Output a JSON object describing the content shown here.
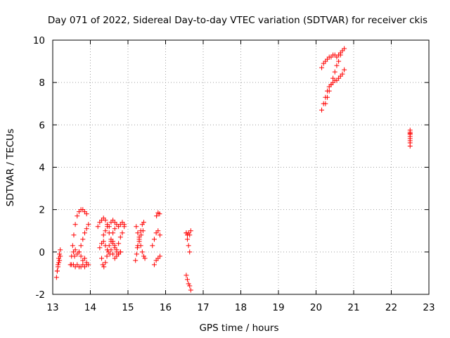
{
  "chart_data": {
    "type": "scatter",
    "title": "Day 071 of 2022, Sidereal Day-to-day VTEC variation (SDTVAR) for receiver ckis",
    "xlabel": "GPS time / hours",
    "ylabel": "SDTVAR / TECUs",
    "xlim": [
      13,
      23
    ],
    "ylim": [
      -2,
      10
    ],
    "xticks": [
      13,
      14,
      15,
      16,
      17,
      18,
      19,
      20,
      21,
      22,
      23
    ],
    "yticks": [
      -2,
      0,
      2,
      4,
      6,
      8,
      10
    ],
    "grid": true,
    "marker": "+",
    "color": "#ff0000",
    "series": [
      {
        "name": "SDTVAR",
        "traces": [
          {
            "x": [
              13.1,
              13.12,
              13.14,
              13.16,
              13.18,
              13.2
            ],
            "y": [
              -1.2,
              -0.9,
              -0.6,
              -0.3,
              -0.1,
              0.1
            ]
          },
          {
            "x": [
              13.12,
              13.14,
              13.16,
              13.18,
              13.2
            ],
            "y": [
              -0.9,
              -0.7,
              -0.5,
              -0.4,
              -0.2
            ]
          },
          {
            "x": [
              13.47,
              13.5,
              13.53,
              13.56,
              13.6,
              13.65,
              13.7,
              13.75,
              13.8,
              13.85,
              13.9
            ],
            "y": [
              -0.6,
              -0.2,
              0.3,
              0.8,
              1.3,
              1.7,
              1.9,
              2.0,
              2.0,
              1.9,
              1.8
            ]
          },
          {
            "x": [
              13.5,
              13.55,
              13.6,
              13.65,
              13.7,
              13.75,
              13.8,
              13.85,
              13.9
            ],
            "y": [
              -0.6,
              -0.6,
              -0.7,
              -0.6,
              -0.7,
              -0.7,
              -0.6,
              -0.7,
              -0.6
            ]
          },
          {
            "x": [
              13.55,
              13.58,
              13.6,
              13.65,
              13.7
            ],
            "y": [
              0.0,
              -0.2,
              0.1,
              -0.1,
              0.0
            ]
          },
          {
            "x": [
              13.7,
              13.75,
              13.8,
              13.85,
              13.9,
              13.95
            ],
            "y": [
              0.0,
              0.3,
              0.6,
              0.9,
              1.1,
              1.3
            ]
          },
          {
            "x": [
              13.75,
              13.8,
              13.85,
              13.9,
              13.95
            ],
            "y": [
              -0.2,
              -0.4,
              -0.3,
              -0.5,
              -0.6
            ]
          },
          {
            "x": [
              14.2,
              14.25,
              14.3,
              14.35,
              14.4,
              14.45,
              14.5,
              14.55,
              14.6,
              14.65,
              14.7,
              14.75,
              14.8,
              14.85,
              14.9
            ],
            "y": [
              1.2,
              1.4,
              1.5,
              1.6,
              1.5,
              1.3,
              1.2,
              1.4,
              1.5,
              1.4,
              1.3,
              1.2,
              1.3,
              1.4,
              1.3
            ]
          },
          {
            "x": [
              14.25,
              14.3,
              14.35,
              14.4,
              14.45,
              14.5,
              14.55,
              14.6,
              14.65,
              14.7,
              14.75,
              14.8
            ],
            "y": [
              0.2,
              0.4,
              0.5,
              0.3,
              0.1,
              0.3,
              0.5,
              0.4,
              0.2,
              0.0,
              -0.1,
              0.0
            ]
          },
          {
            "x": [
              14.3,
              14.33,
              14.36,
              14.4,
              14.44,
              14.48,
              14.52
            ],
            "y": [
              -0.3,
              -0.6,
              -0.7,
              -0.5,
              -0.2,
              0.0,
              -0.1
            ]
          },
          {
            "x": [
              14.35,
              14.4,
              14.45,
              14.5,
              14.55,
              14.6,
              14.65
            ],
            "y": [
              0.8,
              1.0,
              1.2,
              0.9,
              0.6,
              0.9,
              1.1
            ]
          },
          {
            "x": [
              14.6,
              14.65,
              14.7,
              14.75,
              14.8,
              14.85,
              14.9
            ],
            "y": [
              0.5,
              0.3,
              0.1,
              0.4,
              0.7,
              0.9,
              1.2
            ]
          },
          {
            "x": [
              14.55,
              14.6,
              14.65,
              14.7,
              14.75,
              14.8
            ],
            "y": [
              0.1,
              -0.1,
              -0.3,
              -0.2,
              -0.1,
              0.0
            ]
          },
          {
            "x": [
              15.2,
              15.23,
              15.26,
              15.3,
              15.34,
              15.38,
              15.42
            ],
            "y": [
              -0.4,
              -0.1,
              0.3,
              0.7,
              1.0,
              1.3,
              1.4
            ]
          },
          {
            "x": [
              15.22,
              15.26,
              15.3,
              15.34,
              15.38,
              15.42,
              15.45
            ],
            "y": [
              1.2,
              0.9,
              0.6,
              0.3,
              0.0,
              -0.2,
              -0.3
            ]
          },
          {
            "x": [
              15.25,
              15.3,
              15.35,
              15.4
            ],
            "y": [
              0.2,
              0.5,
              0.8,
              1.0
            ]
          },
          {
            "x": [
              15.65,
              15.7,
              15.75,
              15.8,
              15.85
            ],
            "y": [
              0.3,
              0.6,
              0.9,
              1.0,
              0.8
            ]
          },
          {
            "x": [
              15.7,
              15.75,
              15.8,
              15.85
            ],
            "y": [
              -0.6,
              -0.4,
              -0.3,
              -0.2
            ]
          },
          {
            "x": [
              15.76,
              15.8,
              15.84
            ],
            "y": [
              1.7,
              1.85,
              1.8
            ]
          },
          {
            "x": [
              16.55,
              16.58,
              16.61,
              16.64
            ],
            "y": [
              0.9,
              0.6,
              0.3,
              0.0
            ]
          },
          {
            "x": [
              16.55,
              16.58,
              16.61,
              16.64,
              16.67
            ],
            "y": [
              0.9,
              0.8,
              0.9,
              0.8,
              1.0
            ]
          },
          {
            "x": [
              16.55,
              16.58,
              16.61,
              16.64,
              16.67
            ],
            "y": [
              -1.1,
              -1.3,
              -1.5,
              -1.6,
              -1.8
            ]
          },
          {
            "x": [
              20.15,
              20.2,
              20.25,
              20.3,
              20.35,
              20.4,
              20.45,
              20.5,
              20.55,
              20.6,
              20.65,
              20.7,
              20.75
            ],
            "y": [
              8.7,
              8.9,
              9.0,
              9.1,
              9.2,
              9.2,
              9.3,
              9.3,
              9.2,
              9.3,
              9.4,
              9.5,
              9.6
            ]
          },
          {
            "x": [
              20.15,
              20.2,
              20.25,
              20.3,
              20.35,
              20.4,
              20.45,
              20.5,
              20.55,
              20.6,
              20.65,
              20.7,
              20.75
            ],
            "y": [
              6.7,
              7.0,
              7.3,
              7.6,
              7.8,
              7.9,
              8.0,
              8.1,
              8.1,
              8.2,
              8.3,
              8.4,
              8.6
            ]
          },
          {
            "x": [
              20.25,
              20.3,
              20.35,
              20.4,
              20.45,
              20.5,
              20.55,
              20.6,
              20.65
            ],
            "y": [
              7.0,
              7.3,
              7.6,
              7.9,
              8.2,
              8.5,
              8.8,
              9.0,
              9.3
            ]
          },
          {
            "x": [
              22.5,
              22.5,
              22.5,
              22.5,
              22.5,
              22.5,
              22.5,
              22.5,
              22.5
            ],
            "y": [
              5.0,
              5.15,
              5.25,
              5.35,
              5.45,
              5.55,
              5.6,
              5.65,
              5.75
            ]
          }
        ]
      }
    ]
  }
}
